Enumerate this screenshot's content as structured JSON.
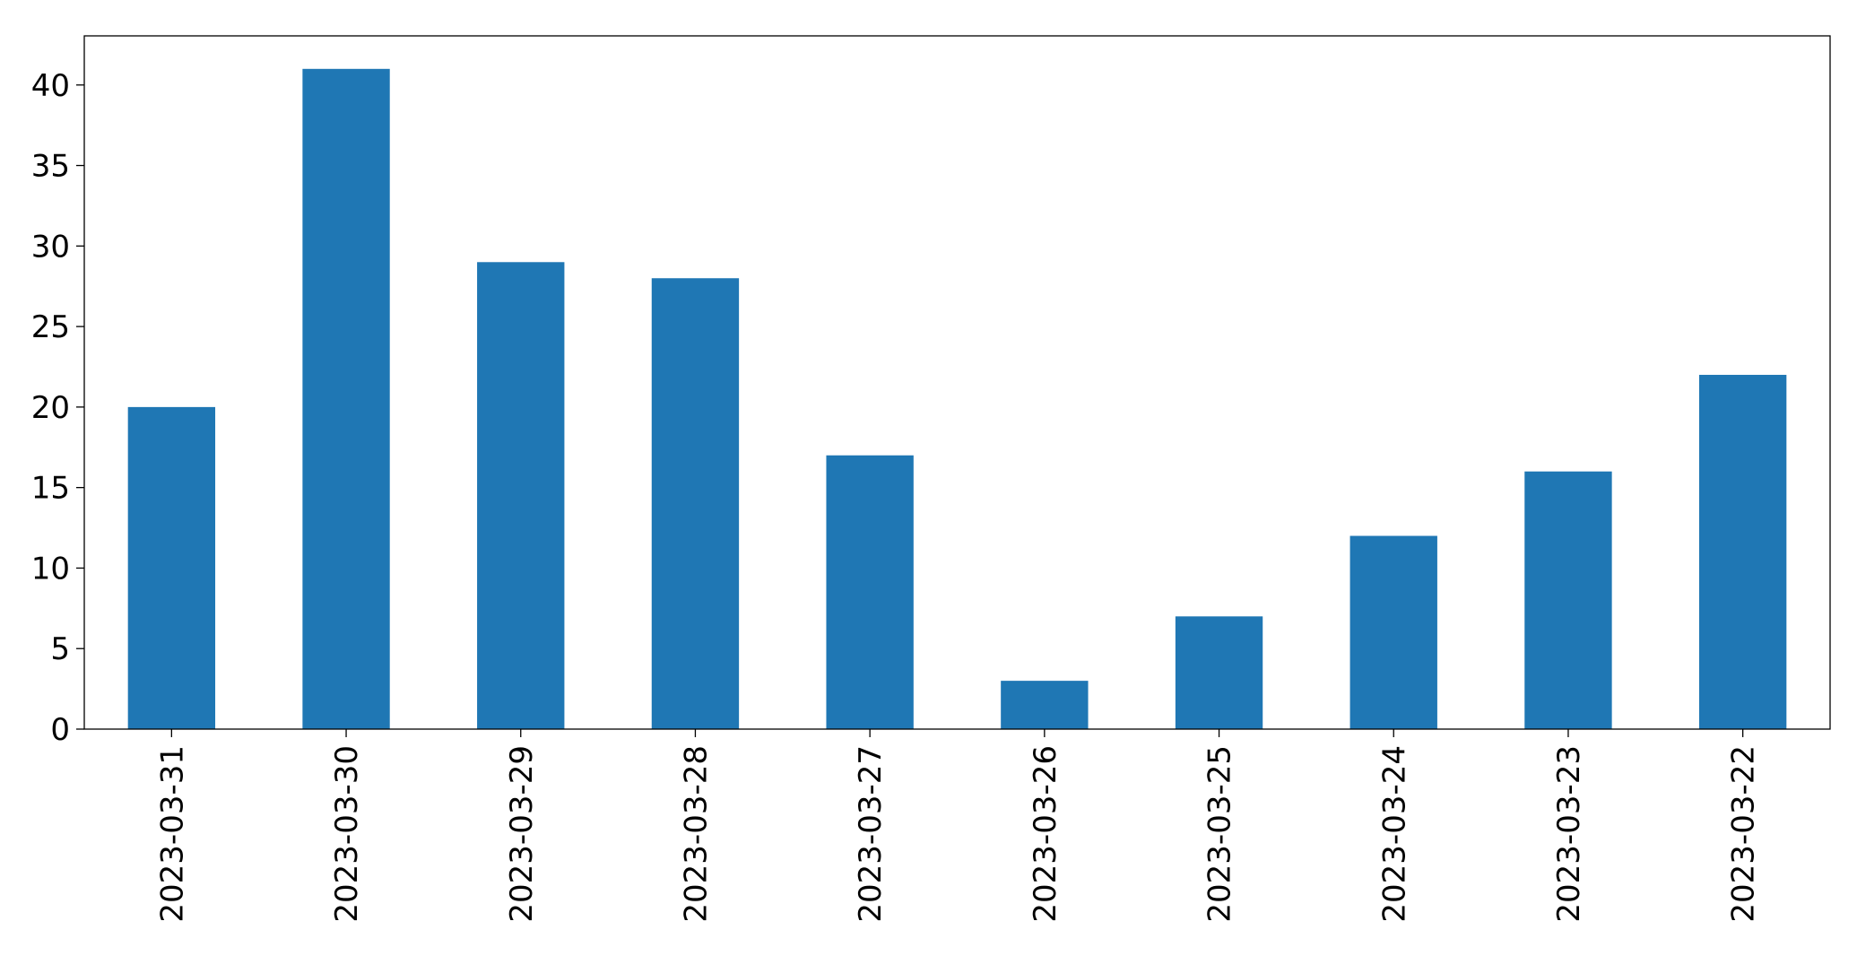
{
  "chart_data": {
    "type": "bar",
    "categories": [
      "2023-03-31",
      "2023-03-30",
      "2023-03-29",
      "2023-03-28",
      "2023-03-27",
      "2023-03-26",
      "2023-03-25",
      "2023-03-24",
      "2023-03-23",
      "2023-03-22"
    ],
    "values": [
      20,
      41,
      29,
      28,
      17,
      3,
      7,
      12,
      16,
      22
    ],
    "title": "",
    "xlabel": "",
    "ylabel": "",
    "ylim": [
      0,
      43.05
    ],
    "yticks": [
      0,
      5,
      10,
      15,
      20,
      25,
      30,
      35,
      40
    ],
    "bar_color": "#1f77b4",
    "grid": false,
    "legend": false
  }
}
